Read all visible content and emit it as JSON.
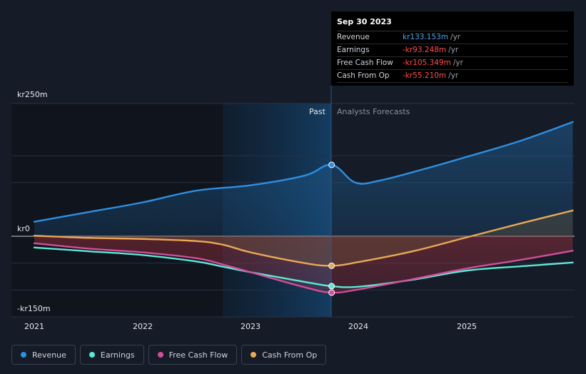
{
  "tooltip": {
    "date": "Sep 30 2023",
    "rows": [
      {
        "name": "Revenue",
        "value": "kr133.153m",
        "unit": "/yr",
        "color": "#4aa3f0"
      },
      {
        "name": "Earnings",
        "value": "-kr93.248m",
        "unit": "/yr",
        "color": "#ff4d4d"
      },
      {
        "name": "Free Cash Flow",
        "value": "-kr105.349m",
        "unit": "/yr",
        "color": "#ff4d4d"
      },
      {
        "name": "Cash From Op",
        "value": "-kr55.210m",
        "unit": "/yr",
        "color": "#ff4d4d"
      }
    ]
  },
  "labels": {
    "past": "Past",
    "forecast": "Analysts Forecasts"
  },
  "legend": [
    {
      "name": "Revenue",
      "color": "#2e8fe0"
    },
    {
      "name": "Earnings",
      "color": "#5ee8d3"
    },
    {
      "name": "Free Cash Flow",
      "color": "#d34d9a"
    },
    {
      "name": "Cash From Op",
      "color": "#e8a857"
    }
  ],
  "chart_data": {
    "type": "line",
    "title": "",
    "y_tick_labels": [
      "kr250m",
      "kr0",
      "-kr150m"
    ],
    "x_tick_labels": [
      "2021",
      "2022",
      "2023",
      "2024",
      "2025"
    ],
    "xlim": [
      2020.8,
      2025.98
    ],
    "ylim": [
      -150,
      250
    ],
    "past_end": 2023.75,
    "shade_start": 2022.75,
    "series": [
      {
        "name": "Revenue",
        "color": "#2e8fe0",
        "x": [
          2020.8,
          2021.5,
          2022.0,
          2022.5,
          2023.0,
          2023.5,
          2023.75,
          2023.97,
          2024.2,
          2024.6,
          2025.0,
          2025.5,
          2025.98
        ],
        "y": [
          27,
          45,
          63,
          85,
          95,
          113,
          133,
          100,
          104,
          125,
          148,
          178,
          213
        ]
      },
      {
        "name": "Earnings",
        "color": "#5ee8d3",
        "x": [
          2020.8,
          2021.5,
          2022.0,
          2022.5,
          2022.75,
          2023.0,
          2023.5,
          2023.75,
          2024.0,
          2024.5,
          2025.0,
          2025.5,
          2025.98
        ],
        "y": [
          -21,
          -28,
          -35,
          -47,
          -57,
          -67,
          -85,
          -93,
          -94,
          -81,
          -64,
          -56,
          -49
        ]
      },
      {
        "name": "Free Cash Flow",
        "color": "#d34d9a",
        "x": [
          2020.8,
          2021.5,
          2022.0,
          2022.5,
          2022.75,
          2023.0,
          2023.5,
          2023.75,
          2024.0,
          2024.5,
          2025.0,
          2025.5,
          2025.98
        ],
        "y": [
          -13,
          -23,
          -30,
          -41,
          -53,
          -67,
          -95,
          -105,
          -99,
          -80,
          -60,
          -44,
          -27
        ]
      },
      {
        "name": "Cash From Op",
        "color": "#e8a857",
        "x": [
          2020.8,
          2021.5,
          2022.0,
          2022.5,
          2022.75,
          2023.0,
          2023.5,
          2023.75,
          2024.0,
          2024.5,
          2025.0,
          2025.5,
          2025.98
        ],
        "y": [
          1,
          -3,
          -5,
          -9,
          -16,
          -30,
          -50,
          -55,
          -48,
          -28,
          -2,
          24,
          48
        ]
      }
    ]
  }
}
